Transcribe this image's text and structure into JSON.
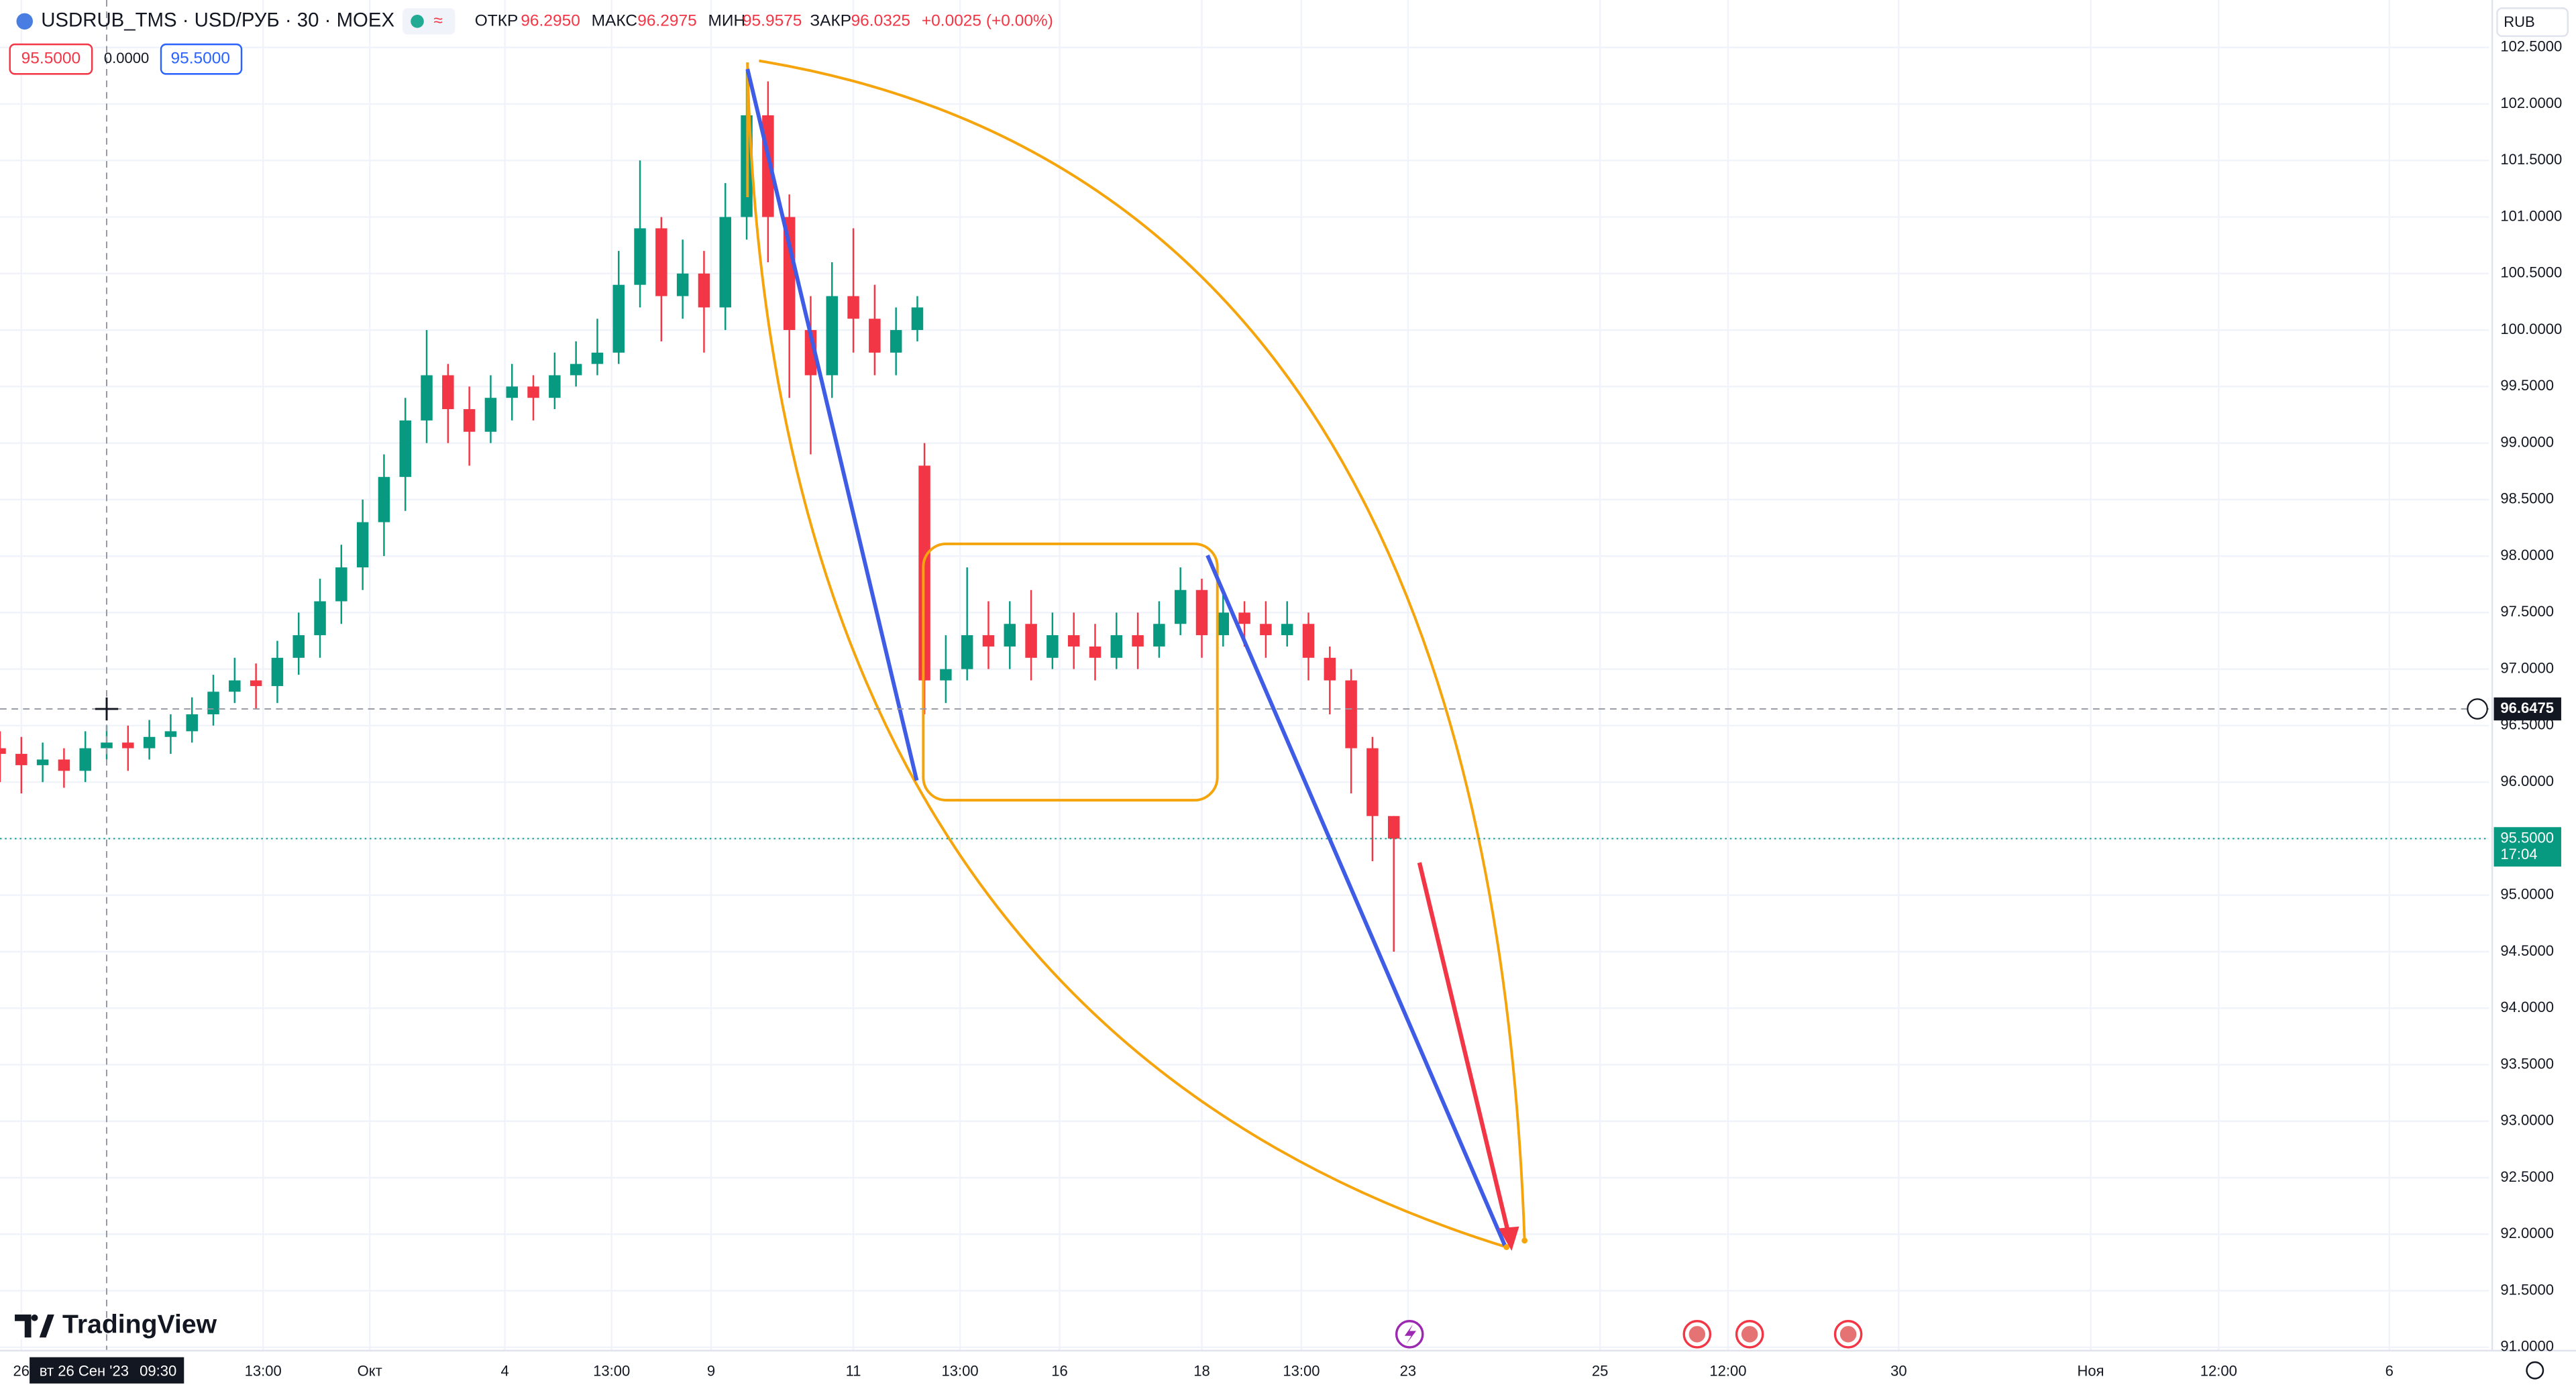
{
  "chart_data": {
    "type": "candlestick",
    "symbol": "USDRUB_TMS · USD/РУБ · 30 · MOEX",
    "ohlc": {
      "open_label": "ОТКР",
      "open": "96.2950",
      "high_label": "МАКС",
      "high": "96.2975",
      "low_label": "МИН",
      "low": "95.9575",
      "close_label": "ЗАКР",
      "close": "96.0325",
      "change": "+0.0025 (+0.00%)"
    },
    "order": {
      "sell": "95.5000",
      "spread": "0.0000",
      "buy": "95.5000"
    },
    "currency": "RUB",
    "brand": "TradingView",
    "up_color": "#089981",
    "down_color": "#f23645",
    "candles": {
      "x": [
        0,
        3,
        6,
        9,
        12,
        15,
        18,
        21,
        24,
        27,
        30,
        33,
        36,
        39,
        42,
        45,
        48,
        51,
        54,
        57,
        60,
        63,
        66,
        69,
        72,
        75,
        78,
        81,
        84,
        87,
        90,
        93,
        96,
        99,
        102,
        105,
        108,
        111,
        114,
        117,
        120,
        123,
        126,
        129,
        130,
        133,
        136,
        139,
        142,
        145,
        148,
        151,
        154,
        157,
        160,
        163,
        166,
        169,
        172,
        175,
        178,
        181,
        184,
        187,
        190,
        193,
        196
      ],
      "open": [
        96.3,
        96.25,
        96.15,
        96.2,
        96.1,
        96.3,
        96.35,
        96.3,
        96.4,
        96.45,
        96.6,
        96.8,
        96.9,
        96.85,
        97.1,
        97.3,
        97.6,
        97.9,
        98.3,
        98.7,
        99.2,
        99.6,
        99.3,
        99.1,
        99.4,
        99.5,
        99.4,
        99.6,
        99.7,
        99.8,
        100.4,
        100.9,
        100.3,
        100.5,
        100.2,
        101.0,
        101.9,
        101.0,
        100.0,
        99.6,
        100.3,
        100.1,
        99.8,
        100.0,
        98.8,
        96.9,
        97.0,
        97.3,
        97.2,
        97.4,
        97.1,
        97.3,
        97.2,
        97.1,
        97.3,
        97.2,
        97.4,
        97.7,
        97.3,
        97.5,
        97.4,
        97.3,
        97.4,
        97.1,
        96.9,
        96.3,
        95.7
      ],
      "high": [
        96.45,
        96.4,
        96.35,
        96.3,
        96.45,
        96.5,
        96.5,
        96.55,
        96.6,
        96.75,
        96.95,
        97.1,
        97.05,
        97.25,
        97.5,
        97.8,
        98.1,
        98.5,
        98.9,
        99.4,
        100.0,
        99.7,
        99.5,
        99.6,
        99.7,
        99.6,
        99.8,
        99.9,
        100.1,
        100.7,
        101.5,
        101.0,
        100.8,
        100.7,
        101.3,
        102.3,
        102.2,
        101.2,
        100.3,
        100.6,
        100.9,
        100.4,
        100.2,
        100.3,
        99.0,
        97.3,
        97.9,
        97.6,
        97.6,
        97.7,
        97.5,
        97.5,
        97.4,
        97.5,
        97.5,
        97.6,
        97.9,
        97.8,
        97.7,
        97.6,
        97.6,
        97.6,
        97.5,
        97.2,
        97.0,
        96.4,
        95.7
      ],
      "low": [
        96.0,
        95.9,
        96.0,
        95.95,
        96.0,
        96.2,
        96.1,
        96.2,
        96.25,
        96.35,
        96.5,
        96.7,
        96.65,
        96.7,
        96.95,
        97.1,
        97.4,
        97.7,
        98.0,
        98.4,
        99.0,
        99.0,
        98.8,
        99.0,
        99.2,
        99.2,
        99.3,
        99.5,
        99.6,
        99.7,
        100.2,
        99.9,
        100.1,
        99.8,
        100.0,
        100.8,
        100.6,
        99.4,
        98.9,
        99.4,
        99.8,
        99.6,
        99.6,
        99.9,
        96.6,
        96.7,
        96.9,
        97.0,
        97.0,
        96.9,
        97.0,
        97.0,
        96.9,
        97.0,
        97.0,
        97.1,
        97.3,
        97.1,
        97.2,
        97.2,
        97.1,
        97.2,
        96.9,
        96.6,
        95.9,
        95.3,
        94.5
      ],
      "close": [
        96.25,
        96.15,
        96.2,
        96.1,
        96.3,
        96.35,
        96.3,
        96.4,
        96.45,
        96.6,
        96.8,
        96.9,
        96.85,
        97.1,
        97.3,
        97.6,
        97.9,
        98.3,
        98.7,
        99.2,
        99.6,
        99.3,
        99.1,
        99.4,
        99.5,
        99.4,
        99.6,
        99.7,
        99.8,
        100.4,
        100.9,
        100.3,
        100.5,
        100.2,
        101.0,
        101.9,
        101.0,
        100.0,
        99.6,
        100.3,
        100.1,
        99.8,
        100.0,
        100.2,
        96.9,
        97.0,
        97.3,
        97.2,
        97.4,
        97.1,
        97.3,
        97.2,
        97.1,
        97.3,
        97.2,
        97.4,
        97.7,
        97.3,
        97.5,
        97.4,
        97.3,
        97.4,
        97.1,
        96.9,
        96.3,
        95.7,
        95.5
      ]
    },
    "xlim": [
      0,
      350
    ],
    "xticks": [
      {
        "value": 3,
        "label": "26"
      },
      {
        "value": 37,
        "label": "13:00"
      },
      {
        "value": 52,
        "label": "Окт"
      },
      {
        "value": 71,
        "label": "4"
      },
      {
        "value": 86,
        "label": "13:00"
      },
      {
        "value": 100,
        "label": "9"
      },
      {
        "value": 120,
        "label": "11"
      },
      {
        "value": 135,
        "label": "13:00"
      },
      {
        "value": 149,
        "label": "16"
      },
      {
        "value": 169,
        "label": "18"
      },
      {
        "value": 183,
        "label": "13:00"
      },
      {
        "value": 198,
        "label": "23"
      },
      {
        "value": 225,
        "label": "25"
      },
      {
        "value": 243,
        "label": "12:00"
      },
      {
        "value": 267,
        "label": "30"
      },
      {
        "value": 294,
        "label": "Ноя"
      },
      {
        "value": 312,
        "label": "12:00"
      },
      {
        "value": 336,
        "label": "6"
      }
    ],
    "ylim": [
      90.97,
      102.92
    ],
    "yticks": [
      {
        "value": 91,
        "label": "91.0000"
      },
      {
        "value": 91.5,
        "label": "91.5000"
      },
      {
        "value": 92,
        "label": "92.0000"
      },
      {
        "value": 92.5,
        "label": "92.5000"
      },
      {
        "value": 93,
        "label": "93.0000"
      },
      {
        "value": 93.5,
        "label": "93.5000"
      },
      {
        "value": 94,
        "label": "94.0000"
      },
      {
        "value": 94.5,
        "label": "94.5000"
      },
      {
        "value": 95,
        "label": "95.0000"
      },
      {
        "value": 95.5,
        "label": "95.5000"
      },
      {
        "value": 96,
        "label": "96.0000"
      },
      {
        "value": 96.5,
        "label": "96.5000"
      },
      {
        "value": 97,
        "label": "97.0000"
      },
      {
        "value": 97.5,
        "label": "97.5000"
      },
      {
        "value": 98,
        "label": "98.0000"
      },
      {
        "value": 98.5,
        "label": "98.5000"
      },
      {
        "value": 99,
        "label": "99.0000"
      },
      {
        "value": 99.5,
        "label": "99.5000"
      },
      {
        "value": 100,
        "label": "100.0000"
      },
      {
        "value": 100.5,
        "label": "100.5000"
      },
      {
        "value": 101,
        "label": "101.0000"
      },
      {
        "value": 101.5,
        "label": "101.5000"
      },
      {
        "value": 102,
        "label": "102.0000"
      },
      {
        "value": 102.5,
        "label": "102.5000"
      }
    ],
    "grid": true,
    "last_price": {
      "value": 95.5,
      "label": "95.5000"
    },
    "last_time": "17:04",
    "crosshair": {
      "x": 15,
      "price": 96.6475,
      "date_label": "вт 26 Сен '23",
      "time_label": "09:30"
    }
  }
}
